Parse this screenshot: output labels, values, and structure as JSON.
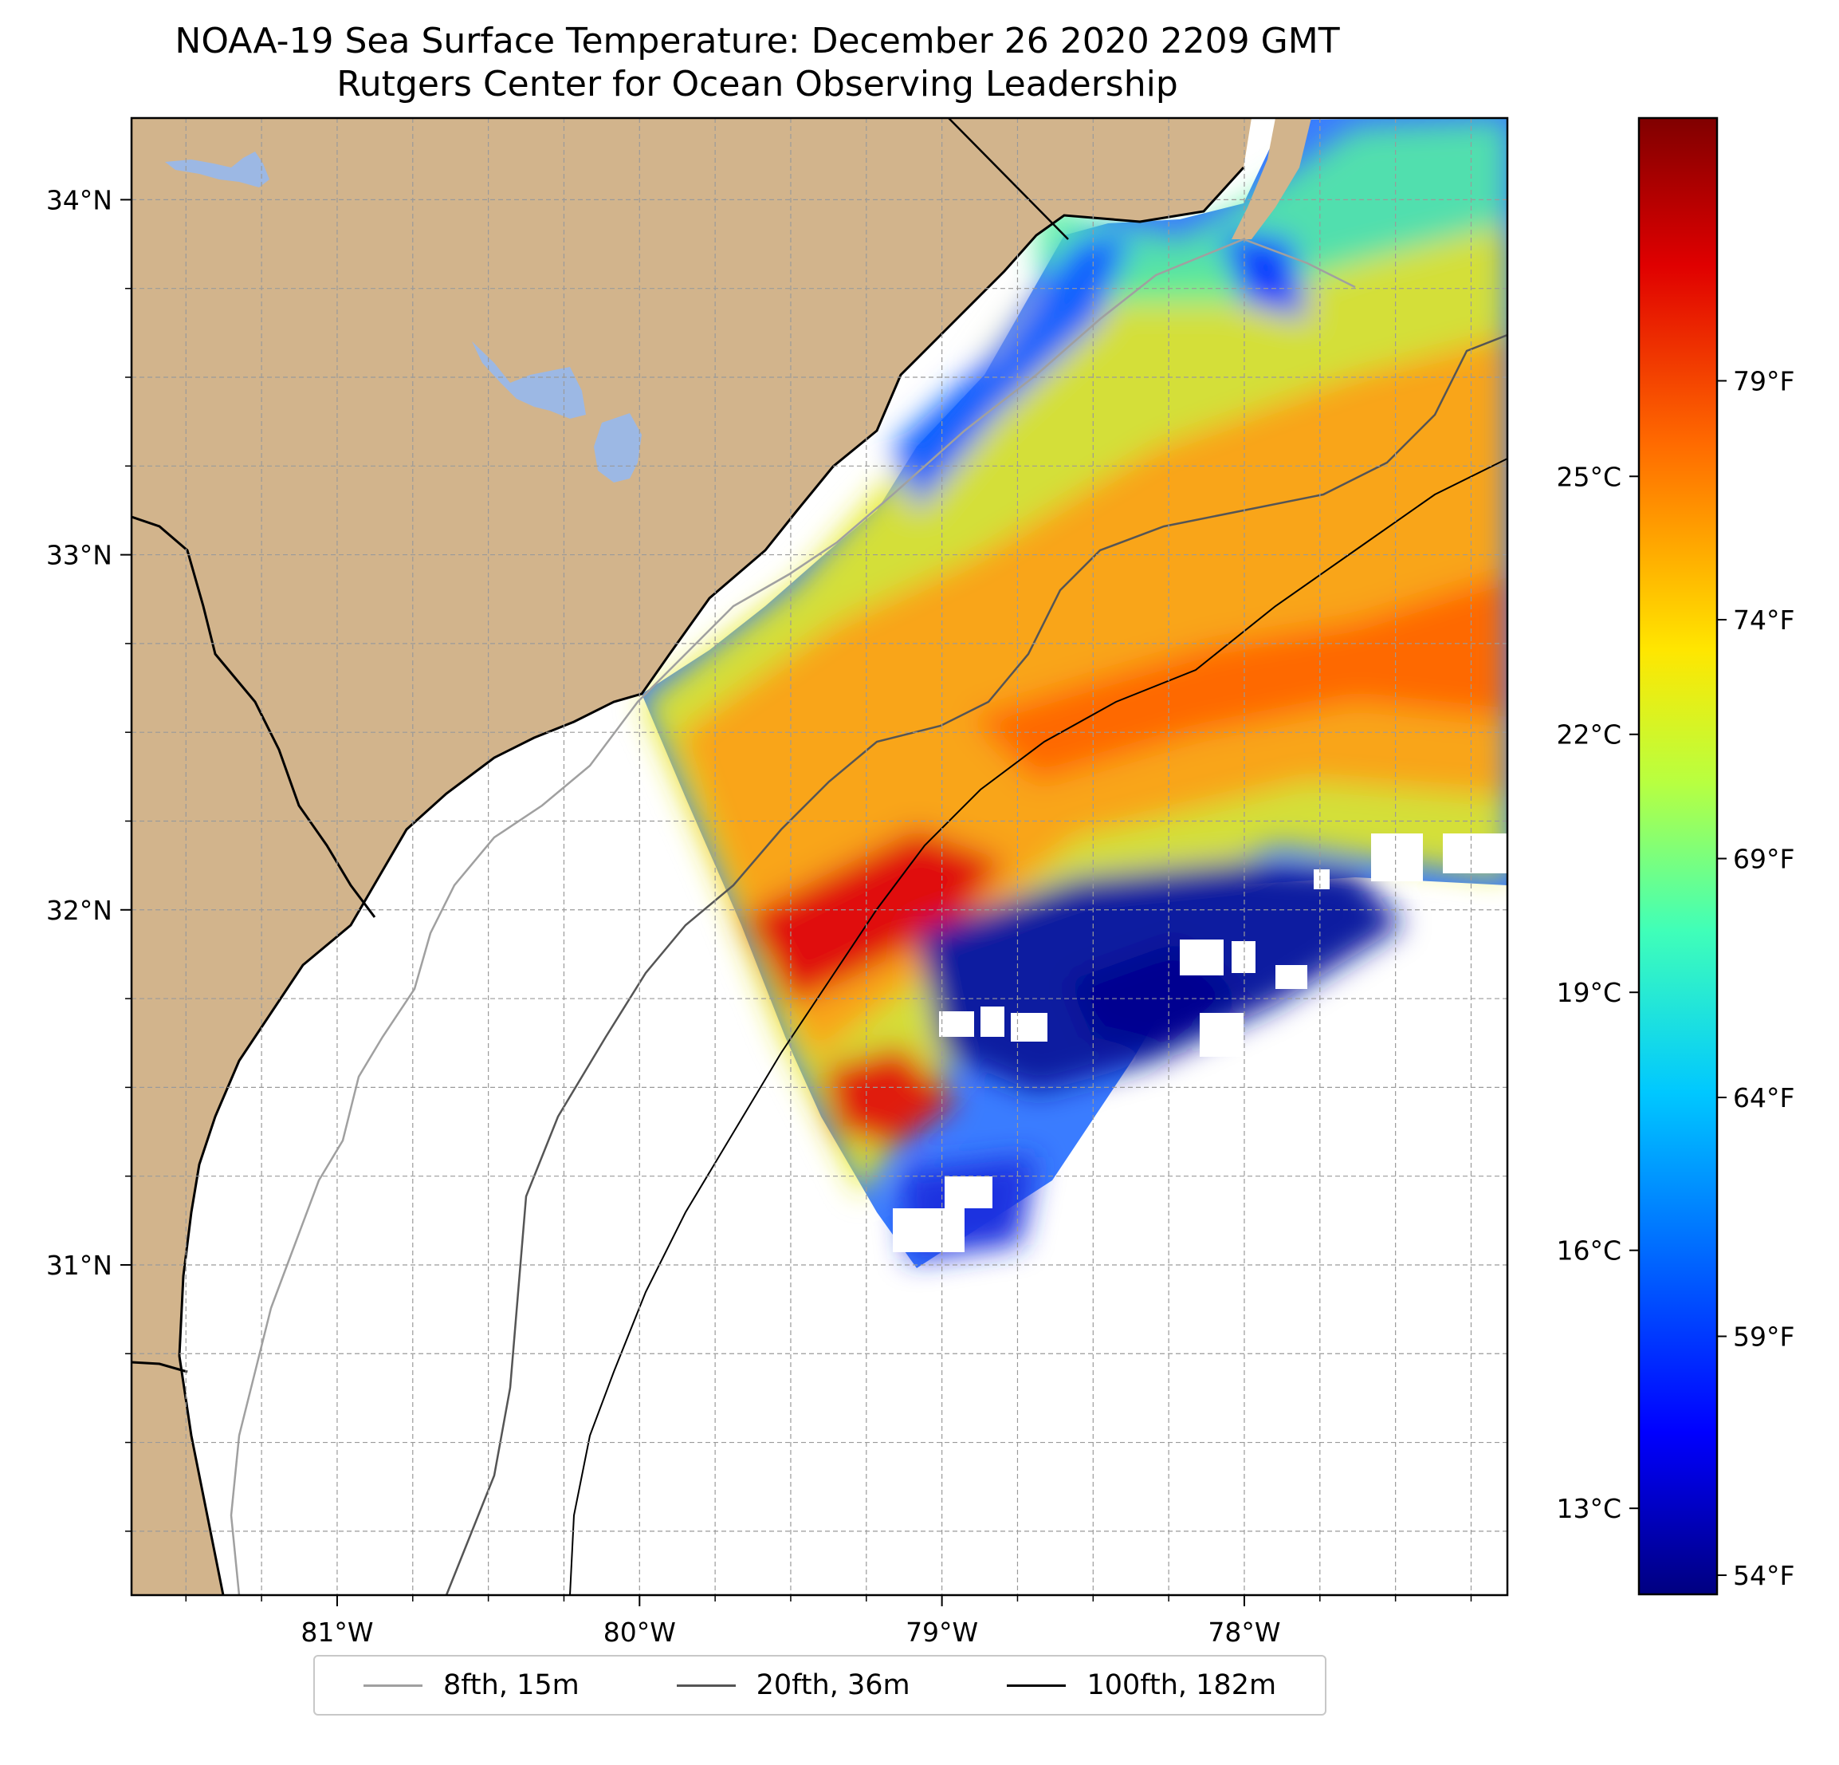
{
  "title": "NOAA-19 Sea Surface Temperature: December 26 2020 2209 GMT",
  "subtitle": "Rutgers Center for Ocean Observing Leadership",
  "colors": {
    "land": "#d2b48c",
    "lakes": "#9cb8e4",
    "isobath_8fth": "#a0a0a0",
    "isobath_20fth": "#555555",
    "isobath_100fth": "#000000"
  },
  "map": {
    "lon_range": [
      -81.68,
      -77.13
    ],
    "lat_range": [
      30.07,
      34.23
    ],
    "lon_ticks": [
      {
        "value": -81,
        "label": "81°W"
      },
      {
        "value": -80,
        "label": "80°W"
      },
      {
        "value": -79,
        "label": "79°W"
      },
      {
        "value": -78,
        "label": "78°W"
      }
    ],
    "lat_ticks": [
      {
        "value": 34,
        "label": "34°N"
      },
      {
        "value": 33,
        "label": "33°N"
      },
      {
        "value": 32,
        "label": "32°N"
      },
      {
        "value": 31,
        "label": "31°N"
      }
    ],
    "gridlines": true
  },
  "colorbar": {
    "colormap": "jet",
    "range_f": [
      53.6,
      84.5
    ],
    "fahrenheit_labels": [
      "79°F",
      "74°F",
      "69°F",
      "64°F",
      "59°F",
      "54°F"
    ],
    "celsius_labels": [
      "25°C",
      "22°C",
      "19°C",
      "16°C",
      "13°C"
    ]
  },
  "legend": {
    "items": [
      {
        "label": "8fth, 15m"
      },
      {
        "label": "20fth, 36m"
      },
      {
        "label": "100fth, 182m"
      }
    ]
  }
}
